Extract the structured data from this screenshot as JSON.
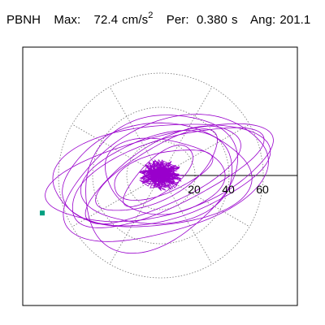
{
  "header": {
    "station": "PBNH",
    "max_label": "Max:",
    "max_value": "72.4",
    "max_unit": "cm/s",
    "max_unit_exp": "2",
    "per_label": "Per:",
    "per_value": "0.380",
    "per_unit": "s",
    "ang_label": "Ang:",
    "ang_value": "201.1"
  },
  "chart_data": {
    "type": "line",
    "title": "",
    "xlabel": "",
    "ylabel": "",
    "plot_kind": "particle-motion (polar hodogram)",
    "radial_ticks": [
      20,
      40,
      60
    ],
    "radial_tick_labels": [
      "20",
      "40",
      "60"
    ],
    "grid_rings": [
      20,
      40,
      60
    ],
    "grid_style": "dotted",
    "max_amplitude": 72.4,
    "peak_angle_deg": 201.1,
    "peak_period_s": 0.38,
    "series": [
      {
        "color": "#9900cc",
        "description_shape": "overlapping elliptical loops tilted ~15 deg, dense core near origin",
        "loops": [
          {
            "a": 68,
            "b": 23,
            "rot_deg": 15,
            "dx": 0,
            "dy": 1
          },
          {
            "a": 64,
            "b": 28,
            "rot_deg": 10,
            "dx": -2,
            "dy": 2
          },
          {
            "a": 60,
            "b": 20,
            "rot_deg": 22,
            "dx": 1,
            "dy": 0
          },
          {
            "a": 55,
            "b": 30,
            "rot_deg": 5,
            "dx": -3,
            "dy": -1
          },
          {
            "a": 50,
            "b": 18,
            "rot_deg": 28,
            "dx": 2,
            "dy": 1
          },
          {
            "a": 45,
            "b": 26,
            "rot_deg": 12,
            "dx": 0,
            "dy": -2
          },
          {
            "a": 40,
            "b": 15,
            "rot_deg": 30,
            "dx": -1,
            "dy": 2
          },
          {
            "a": 35,
            "b": 22,
            "rot_deg": -5,
            "dx": 1,
            "dy": 0
          },
          {
            "a": 30,
            "b": 12,
            "rot_deg": 18,
            "dx": 0,
            "dy": 1
          },
          {
            "a": 48,
            "b": 36,
            "rot_deg": 35,
            "dx": -2,
            "dy": -3
          },
          {
            "a": 62,
            "b": 32,
            "rot_deg": 20,
            "dx": 3,
            "dy": -2
          },
          {
            "a": 25,
            "b": 10,
            "rot_deg": 40,
            "dx": -1,
            "dy": 0
          }
        ]
      }
    ],
    "marker": {
      "color": "#00a080",
      "x_units": -69.5,
      "y_units": -22.0
    }
  }
}
